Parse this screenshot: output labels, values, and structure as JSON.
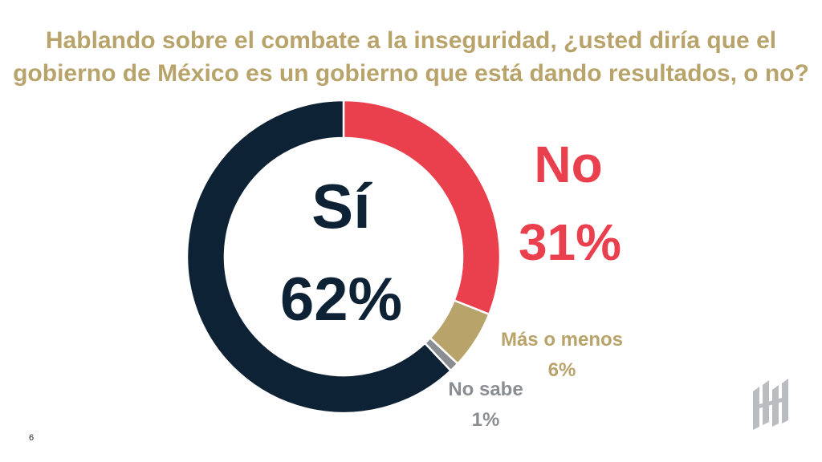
{
  "slide": {
    "title_lines": [
      "Hablando sobre el combate a la inseguridad, ¿usted diría que el",
      "gobierno de México es un gobierno que está dando resultados, o no?"
    ],
    "page_number": "6",
    "logo_icon": "brand-logo-icon"
  },
  "chart_data": {
    "type": "pie",
    "donut": true,
    "categories": [
      "No",
      "Más o menos",
      "No sabe",
      "Sí"
    ],
    "values": [
      31,
      6,
      1,
      62
    ],
    "value_labels": [
      "31%",
      "6%",
      "1%",
      "62%"
    ],
    "colors": [
      "#ea3f4d",
      "#b8a36a",
      "#8a8d92",
      "#0e2236"
    ],
    "start_angle_deg": 0,
    "direction": "clockwise"
  },
  "colors": {
    "title": "#b8a36a",
    "background": "#ffffff"
  }
}
